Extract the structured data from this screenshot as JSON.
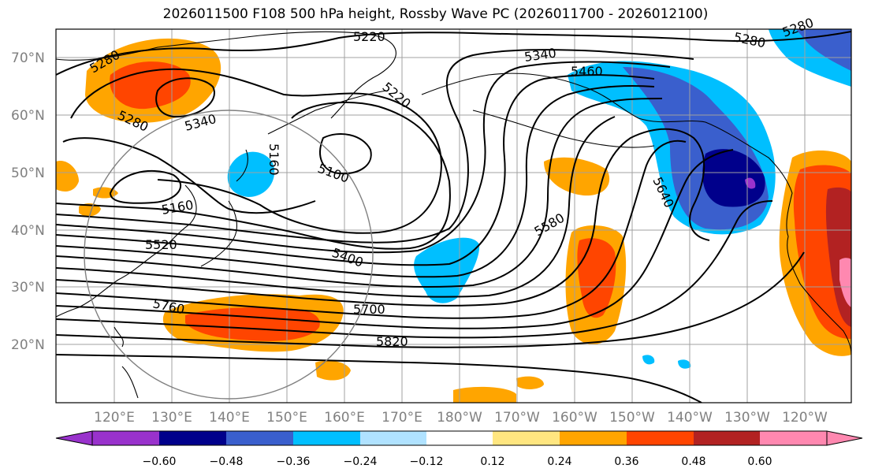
{
  "title": "2026011500 F108 500 hPa height, Rossby Wave PC (2026011700 - 2026012100)",
  "map": {
    "lat_labels": [
      "70°N",
      "60°N",
      "50°N",
      "40°N",
      "30°N",
      "20°N"
    ],
    "lon_labels": [
      "120°E",
      "130°E",
      "140°E",
      "150°E",
      "160°E",
      "170°E",
      "180°W",
      "170°W",
      "160°W",
      "150°W",
      "140°W",
      "130°W",
      "120°W"
    ],
    "contour_labels": [
      "5220",
      "5280",
      "5280",
      "5340",
      "5460",
      "5280",
      "5340",
      "5220",
      "5160",
      "5100",
      "5160",
      "5520",
      "5400",
      "5580",
      "5640",
      "5700",
      "5760",
      "5820",
      "5280"
    ]
  },
  "colorbar": {
    "ticks": [
      "−0.60",
      "−0.48",
      "−0.36",
      "−0.24",
      "−0.12",
      "0.12",
      "0.24",
      "0.36",
      "0.48",
      "0.60"
    ],
    "colors": [
      "#9932cc",
      "#00008b",
      "#3a5fcd",
      "#00bfff",
      "#b0e2ff",
      "#ffffff",
      "#ffe680",
      "#ffa500",
      "#ff4500",
      "#b22222",
      "#ff88b0"
    ]
  }
}
